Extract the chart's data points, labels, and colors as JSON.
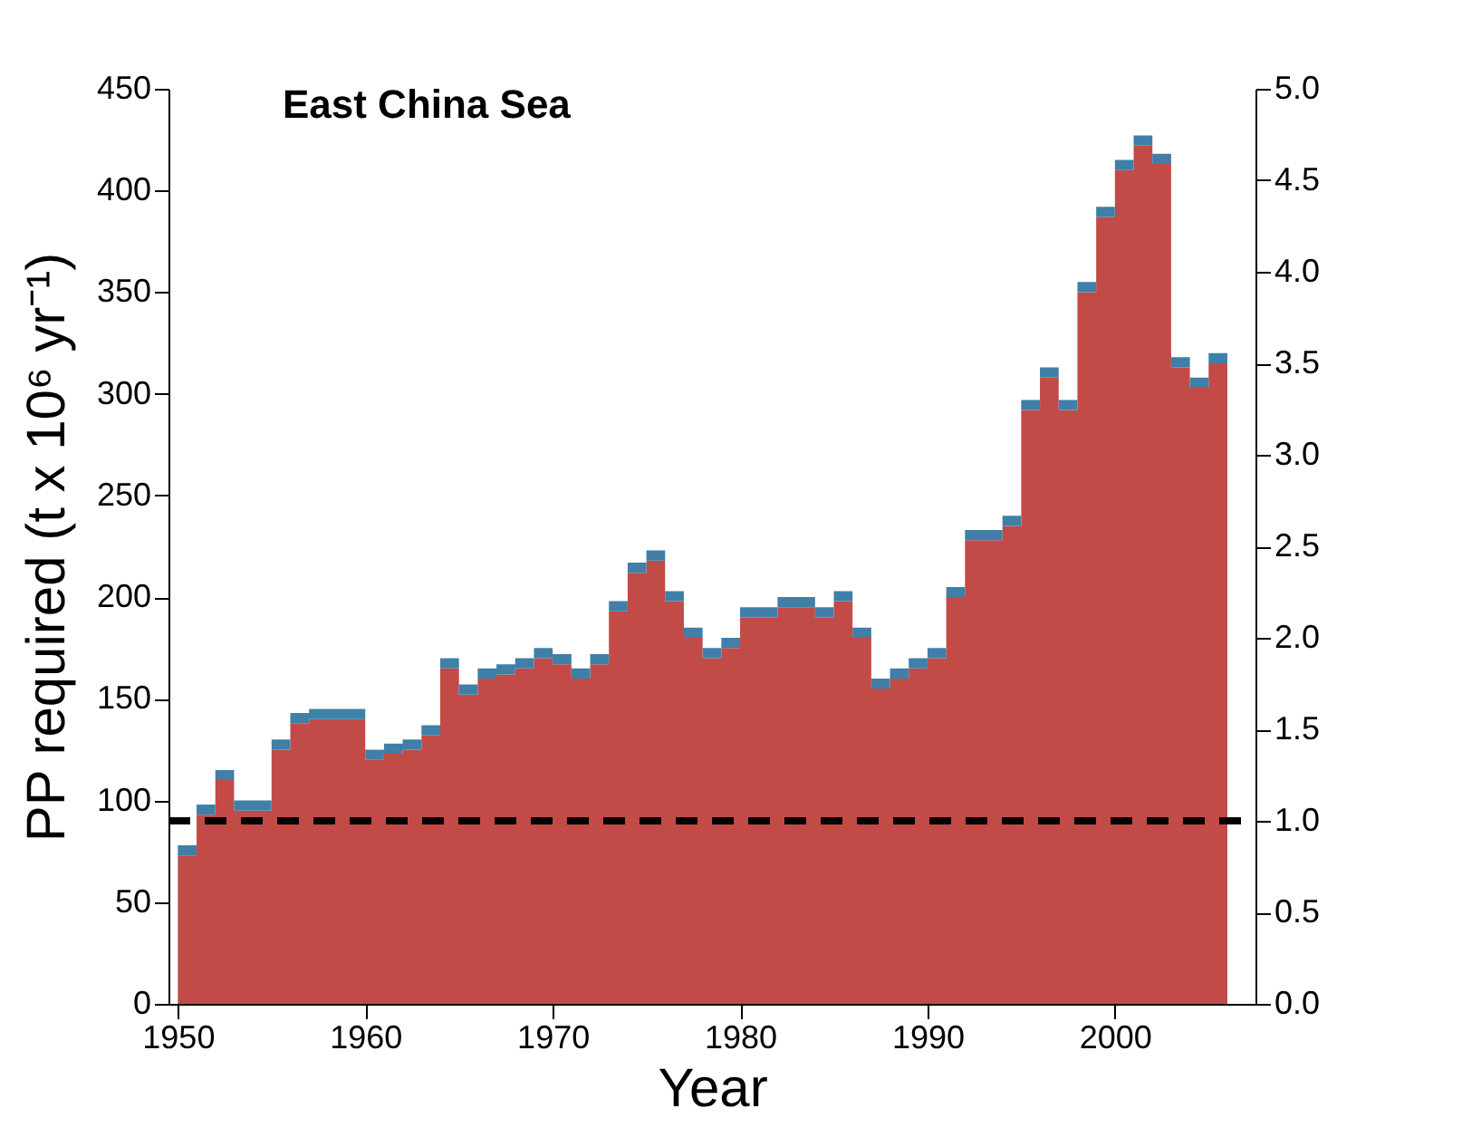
{
  "chart_data": {
    "type": "area",
    "stacked": true,
    "title": "East China Sea",
    "xlabel": "Year",
    "ylabel": "PP required (t x 10⁶ yr⁻¹)",
    "x": [
      1950,
      1951,
      1952,
      1953,
      1954,
      1955,
      1956,
      1957,
      1958,
      1959,
      1960,
      1961,
      1962,
      1963,
      1964,
      1965,
      1966,
      1967,
      1968,
      1969,
      1970,
      1971,
      1972,
      1973,
      1974,
      1975,
      1976,
      1977,
      1978,
      1979,
      1980,
      1981,
      1982,
      1983,
      1984,
      1985,
      1986,
      1987,
      1988,
      1989,
      1990,
      1991,
      1992,
      1993,
      1994,
      1995,
      1996,
      1997,
      1998,
      1999,
      2000,
      2001,
      2002,
      2003,
      2004,
      2005,
      2006
    ],
    "series": [
      {
        "color": "#c24b47",
        "values": [
          73,
          93,
          110,
          95,
          95,
          125,
          138,
          140,
          140,
          140,
          120,
          123,
          125,
          132,
          165,
          152,
          160,
          162,
          165,
          170,
          167,
          160,
          167,
          193,
          212,
          218,
          198,
          180,
          170,
          175,
          190,
          190,
          195,
          195,
          190,
          198,
          180,
          155,
          160,
          165,
          170,
          200,
          228,
          228,
          235,
          292,
          308,
          292,
          350,
          387,
          410,
          422,
          413,
          313,
          303,
          315,
          315
        ]
      },
      {
        "color": "#3f7fa8",
        "values": [
          5,
          5,
          5,
          5,
          5,
          5,
          5,
          5,
          5,
          5,
          5,
          5,
          5,
          5,
          5,
          5,
          5,
          5,
          5,
          5,
          5,
          5,
          5,
          5,
          5,
          5,
          5,
          5,
          5,
          5,
          5,
          5,
          5,
          5,
          5,
          5,
          5,
          5,
          5,
          5,
          5,
          5,
          5,
          5,
          5,
          5,
          5,
          5,
          5,
          5,
          5,
          5,
          5,
          5,
          5,
          5,
          5
        ]
      }
    ],
    "xlim": [
      1949.5,
      2007.5
    ],
    "xticks": [
      1950,
      1960,
      1970,
      1980,
      1990,
      2000
    ],
    "ylim": [
      0,
      450
    ],
    "yticks": [
      0,
      50,
      100,
      150,
      200,
      250,
      300,
      350,
      400,
      450
    ],
    "y2lim": [
      0,
      5
    ],
    "y2ticks": [
      {
        "value": 0,
        "label": "0.0"
      },
      {
        "value": 0.5,
        "label": "0.5"
      },
      {
        "value": 1,
        "label": "1.0"
      },
      {
        "value": 1.5,
        "label": "1.5"
      },
      {
        "value": 2,
        "label": "2.0"
      },
      {
        "value": 2.5,
        "label": "2.5"
      },
      {
        "value": 3,
        "label": "3.0"
      },
      {
        "value": 3.5,
        "label": "3.5"
      },
      {
        "value": 4,
        "label": "4.0"
      },
      {
        "value": 4.5,
        "label": "4.5"
      },
      {
        "value": 5,
        "label": "5.0"
      }
    ],
    "ref_lines": [
      {
        "axis": "y2",
        "value": 1,
        "color": "#000000",
        "line_style": "dashed"
      }
    ],
    "grid": false,
    "legend": false
  }
}
